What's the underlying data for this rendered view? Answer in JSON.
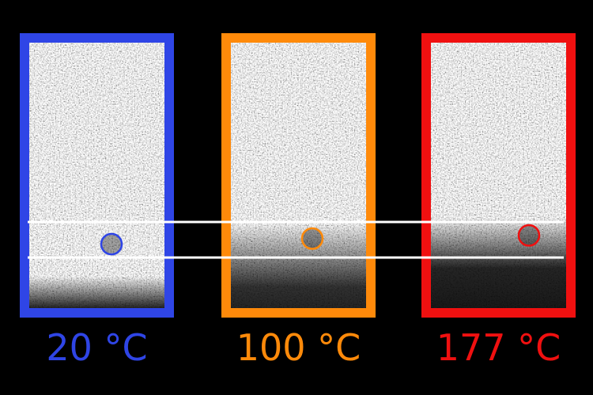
{
  "panels": [
    {
      "label": "20 °C",
      "color": "#2f45e6"
    },
    {
      "label": "100 °C",
      "color": "#ff8a0a"
    },
    {
      "label": "177 °C",
      "color": "#f01010"
    }
  ]
}
